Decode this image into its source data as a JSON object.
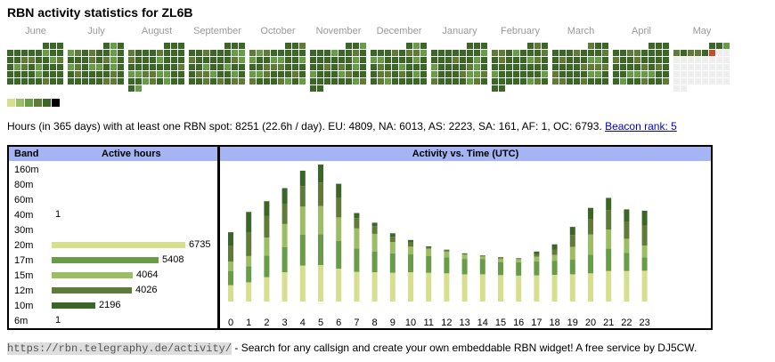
{
  "title": "RBN activity statistics for ZL6B",
  "months": [
    "June",
    "July",
    "August",
    "September",
    "October",
    "November",
    "December",
    "January",
    "February",
    "March",
    "April",
    "May"
  ],
  "colors": {
    "level1": "#d6df8e",
    "level2": "#9cbd63",
    "level3": "#689c48",
    "level4": "#607a38",
    "level5": "#3b6627",
    "level6": "#000000",
    "empty": "#eeeeee",
    "today": "#c94a2c",
    "header": "#a5b4f5"
  },
  "stats": {
    "text": "Hours (in 365 days) with at least one RBN spot: 8251 (22.6h / day). EU: 4809, NA: 6013, AS: 2223, SA: 161, AF: 1, OC: 6793.",
    "rank_link": "Beacon rank: 5"
  },
  "band_panel": {
    "col_band": "Band",
    "col_hours": "Active hours",
    "bands": [
      {
        "name": "160m",
        "value": null,
        "color": ""
      },
      {
        "name": "80m",
        "value": null,
        "color": ""
      },
      {
        "name": "60m",
        "value": null,
        "color": ""
      },
      {
        "name": "40m",
        "value": 1,
        "color": "#3b6627"
      },
      {
        "name": "30m",
        "value": null,
        "color": ""
      },
      {
        "name": "20m",
        "value": 6735,
        "color": "#d6df8e"
      },
      {
        "name": "17m",
        "value": 5408,
        "color": "#689c48"
      },
      {
        "name": "15m",
        "value": 4064,
        "color": "#9cbd63"
      },
      {
        "name": "12m",
        "value": 4026,
        "color": "#607a38"
      },
      {
        "name": "10m",
        "value": 2196,
        "color": "#3b6627"
      },
      {
        "name": "6m",
        "value": 1,
        "color": "#3b6627"
      }
    ]
  },
  "time_panel": {
    "title": "Activity vs. Time (UTC)"
  },
  "chart_data": {
    "type": "bar",
    "stacked": true,
    "title": "Activity vs. Time (UTC)",
    "categories": [
      "0",
      "1",
      "2",
      "3",
      "4",
      "5",
      "6",
      "7",
      "8",
      "9",
      "10",
      "11",
      "12",
      "13",
      "14",
      "15",
      "16",
      "17",
      "18",
      "19",
      "20",
      "21",
      "22",
      "23"
    ],
    "ylim": [
      0,
      520
    ],
    "series": [
      {
        "color": "#d6df8e",
        "values": [
          64,
          75,
          95,
          114,
          140,
          142,
          128,
          116,
          114,
          112,
          114,
          112,
          110,
          106,
          106,
          103,
          101,
          102,
          104,
          106,
          110,
          119,
          119,
          120
        ]
      },
      {
        "color": "#689c48",
        "values": [
          54,
          62,
          84,
          98,
          120,
          120,
          108,
          91,
          80,
          76,
          70,
          66,
          62,
          60,
          60,
          51,
          52,
          55,
          55,
          57,
          73,
          87,
          70,
          52
        ]
      },
      {
        "color": "#9cbd63",
        "values": [
          38,
          40,
          70,
          90,
          110,
          110,
          92,
          78,
          70,
          44,
          30,
          28,
          23,
          17,
          10,
          14,
          12,
          18,
          22,
          50,
          78,
          74,
          56,
          46
        ]
      },
      {
        "color": "#607a38",
        "values": [
          60,
          92,
          84,
          78,
          80,
          92,
          75,
          40,
          28,
          20,
          16,
          4,
          4,
          2,
          2,
          3,
          2,
          10,
          22,
          46,
          60,
          76,
          64,
          80
        ]
      },
      {
        "color": "#3b6627",
        "values": [
          54,
          80,
          58,
          62,
          60,
          70,
          56,
          20,
          15,
          14,
          10,
          5,
          3,
          3,
          2,
          2,
          2,
          10,
          20,
          32,
          44,
          48,
          50,
          56
        ]
      }
    ]
  },
  "footer": {
    "url": "https://rbn.telegraphy.de/activity/",
    "text": " - Search for any callsign and create your own embeddable RBN widget! A free service by DJ5CW."
  }
}
